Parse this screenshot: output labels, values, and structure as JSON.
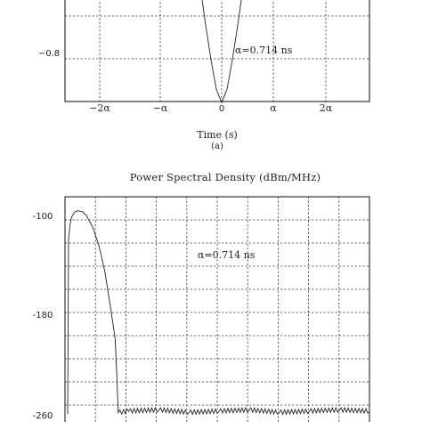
{
  "chart_data": [
    {
      "type": "line",
      "panel_label": "(a)",
      "xlabel": "Time (s)",
      "x_tick_labels": [
        "−2α",
        "−α",
        "0",
        "α",
        "2α"
      ],
      "y_tick_labels": [
        "−0.8"
      ],
      "annotation": "α=0.714 ns",
      "grid": true,
      "series": [
        {
          "x": [
            -0.5,
            -0.4,
            -0.3,
            -0.2,
            -0.1,
            0.0,
            0.1,
            0.2,
            0.3,
            0.4,
            0.5
          ],
          "y": [
            0.0,
            -0.22,
            -0.45,
            -0.66,
            -0.84,
            -0.92,
            -0.84,
            -0.66,
            -0.45,
            -0.22,
            0.0
          ]
        }
      ]
    },
    {
      "type": "line",
      "panel_label": "",
      "title": "Power  Spectral Density (dBm/MHz)",
      "y_tick_labels": [
        "-100",
        "-180",
        "-260"
      ],
      "ylim": [
        -260,
        -100
      ],
      "annotation": "α=0.714 ns",
      "grid": true,
      "series": [
        {
          "x": [
            0.0,
            0.05,
            0.1,
            0.2,
            0.3,
            0.45,
            0.6,
            0.8,
            1.0,
            1.2,
            1.4,
            1.55,
            1.65,
            2.0,
            3.0,
            4.0,
            5.0,
            6.0,
            7.0,
            8.0,
            9.0,
            10.0
          ],
          "y": [
            -120,
            -108,
            -102,
            -98,
            -97,
            -97.5,
            -101,
            -110,
            -124,
            -145,
            -175,
            -200,
            -259,
            -258,
            -257,
            -259,
            -258,
            -257,
            -259,
            -258,
            -257,
            -258
          ]
        }
      ]
    }
  ]
}
